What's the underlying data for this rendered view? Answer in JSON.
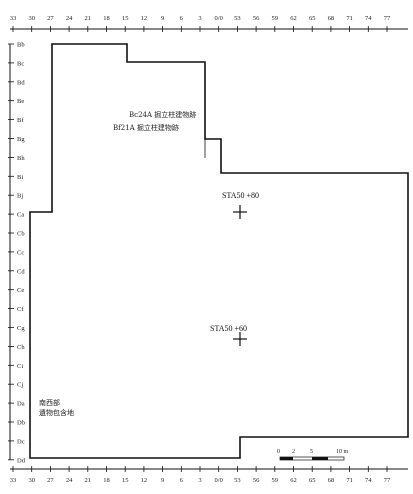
{
  "grid": {
    "x_labels": [
      "33",
      "30",
      "27",
      "24",
      "21",
      "18",
      "15",
      "12",
      "9",
      "6",
      "3",
      "0/0",
      "53",
      "56",
      "59",
      "62",
      "65",
      "68",
      "71",
      "74",
      "77"
    ],
    "y_labels": [
      "Bb",
      "Bc",
      "Bd",
      "Be",
      "Bf",
      "Bg",
      "Bh",
      "Bi",
      "Bj",
      "Ca",
      "Cb",
      "Cc",
      "Cd",
      "Ce",
      "Cf",
      "Cg",
      "Ch",
      "Ci",
      "Cj",
      "Da",
      "Db",
      "Dc",
      "Dd"
    ]
  },
  "annotations": {
    "building_1": "Bc24A 掘立柱建物跡",
    "building_2": "Bf21A 掘立柱建物跡",
    "area_line1": "南西部",
    "area_line2": "遺物包含地"
  },
  "stations": [
    {
      "label": "STA50 +80"
    },
    {
      "label": "STA50 +60"
    }
  ],
  "scale_bar": {
    "labels": [
      "0",
      "2",
      "5",
      "10 m"
    ]
  }
}
